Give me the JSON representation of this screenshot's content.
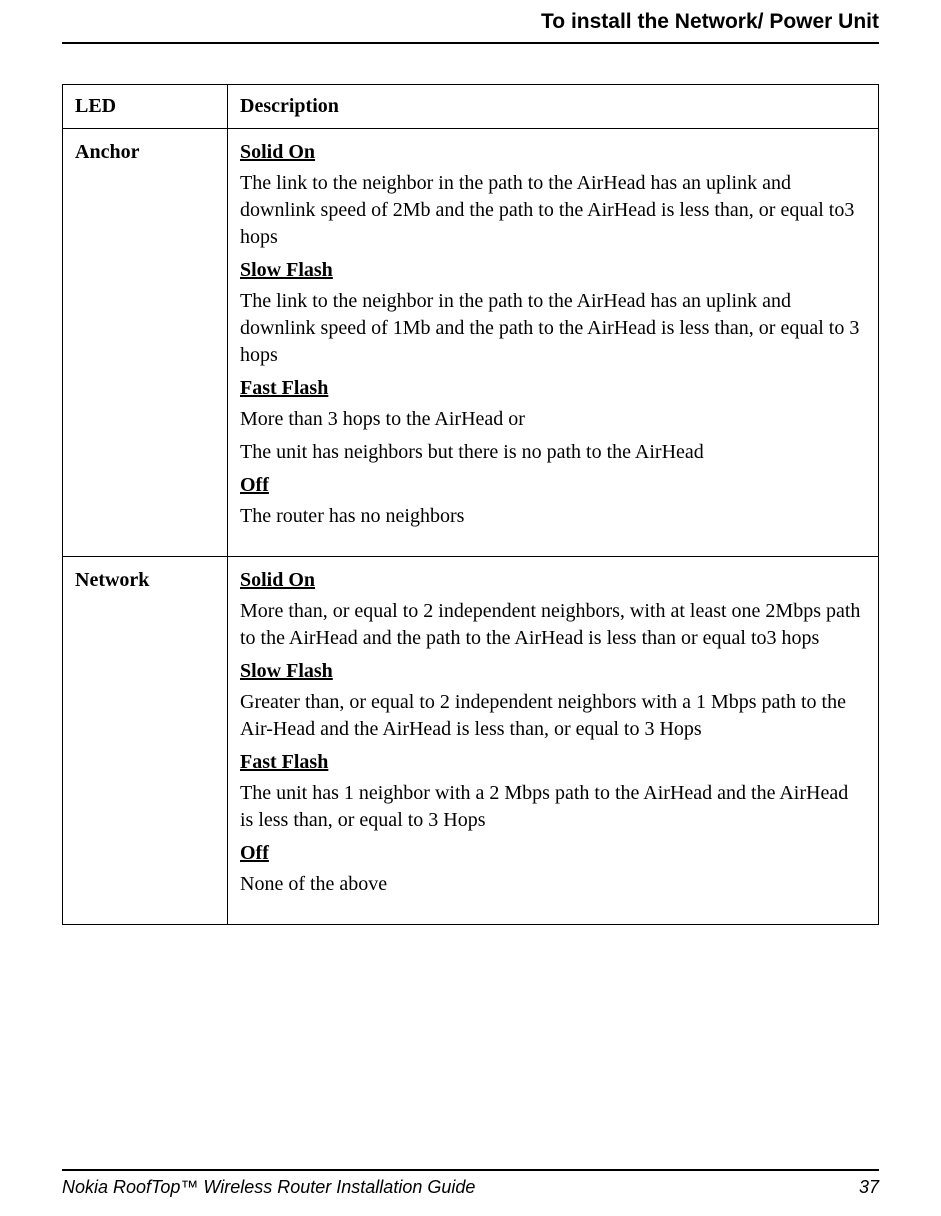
{
  "header": {
    "title": "To install the Network/ Power Unit"
  },
  "table": {
    "columns": {
      "led": "LED",
      "description": "Description"
    },
    "rows": [
      {
        "led": "Anchor",
        "states": [
          {
            "name": "Solid On",
            "body": "The link to the neighbor in the path to the AirHead has an uplink and downlink speed of 2Mb and the path to the AirHead is less than, or equal to3 hops"
          },
          {
            "name": "Slow Flash",
            "body": "The link to the neighbor in the path to the AirHead has an uplink and downlink speed of 1Mb and the path to the AirHead is less than, or equal to 3 hops"
          },
          {
            "name": "Fast Flash",
            "body": "More than 3 hops to the AirHead or",
            "body2": "The unit has neighbors but there is no path to the AirHead"
          },
          {
            "name": "Off",
            "body": "The router has no neighbors"
          }
        ]
      },
      {
        "led": "Network",
        "states": [
          {
            "name": "Solid On",
            "body": "More than, or equal to 2 independent neighbors, with at least one 2Mbps path to the AirHead and the path to the AirHead is less than or equal to3 hops"
          },
          {
            "name": "Slow Flash",
            "body": "Greater than, or equal to 2 independent neighbors with a 1 Mbps path to the Air-Head and the AirHead is less than, or equal to 3 Hops"
          },
          {
            "name": "Fast Flash",
            "body": "The unit has 1 neighbor with a 2 Mbps path to the AirHead and the AirHead is less than, or equal to 3 Hops"
          },
          {
            "name": "Off",
            "body": "None of the above"
          }
        ]
      }
    ]
  },
  "footer": {
    "title": "Nokia RoofTop™ Wireless Router Installation Guide",
    "page": "37"
  }
}
